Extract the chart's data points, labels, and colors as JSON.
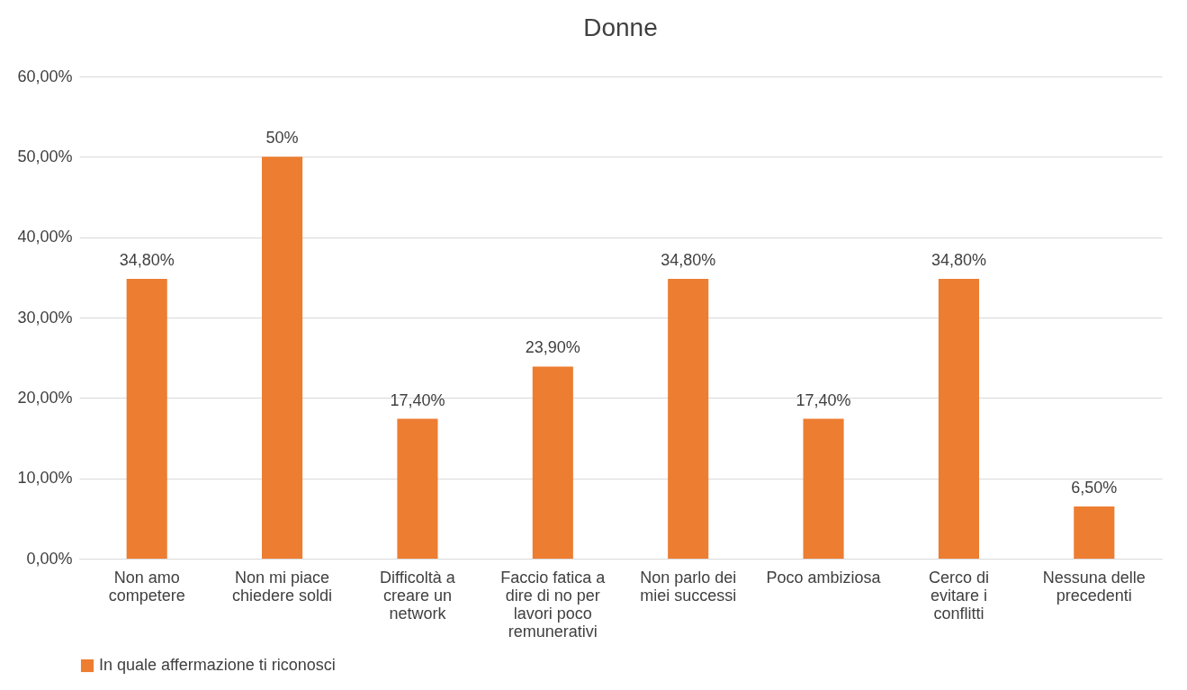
{
  "chart_data": {
    "type": "bar",
    "title": "Donne",
    "categories": [
      "Non amo competere",
      "Non mi piace chiedere soldi",
      "Difficoltà a creare un network",
      "Faccio fatica a dire di no per lavori poco remunerativi",
      "Non parlo dei miei successi",
      "Poco ambiziosa",
      "Cerco di evitare i conflitti",
      "Nessuna delle precedenti"
    ],
    "series": [
      {
        "name": "In quale affermazione ti riconosci",
        "color": "#ed7d31",
        "values": [
          34.8,
          50,
          17.4,
          23.9,
          34.8,
          17.4,
          34.8,
          6.5
        ],
        "value_labels": [
          "34,80%",
          "50%",
          "17,40%",
          "23,90%",
          "34,80%",
          "17,40%",
          "34,80%",
          "6,50%"
        ]
      }
    ],
    "ylim": [
      0,
      60
    ],
    "yticks": [
      {
        "value": 0,
        "label": "0,00%"
      },
      {
        "value": 10,
        "label": "10,00%"
      },
      {
        "value": 20,
        "label": "20,00%"
      },
      {
        "value": 30,
        "label": "30,00%"
      },
      {
        "value": 40,
        "label": "40,00%"
      },
      {
        "value": 50,
        "label": "50,00%"
      },
      {
        "value": 60,
        "label": "60,00%"
      }
    ],
    "grid": "y",
    "legend": "bottom"
  }
}
